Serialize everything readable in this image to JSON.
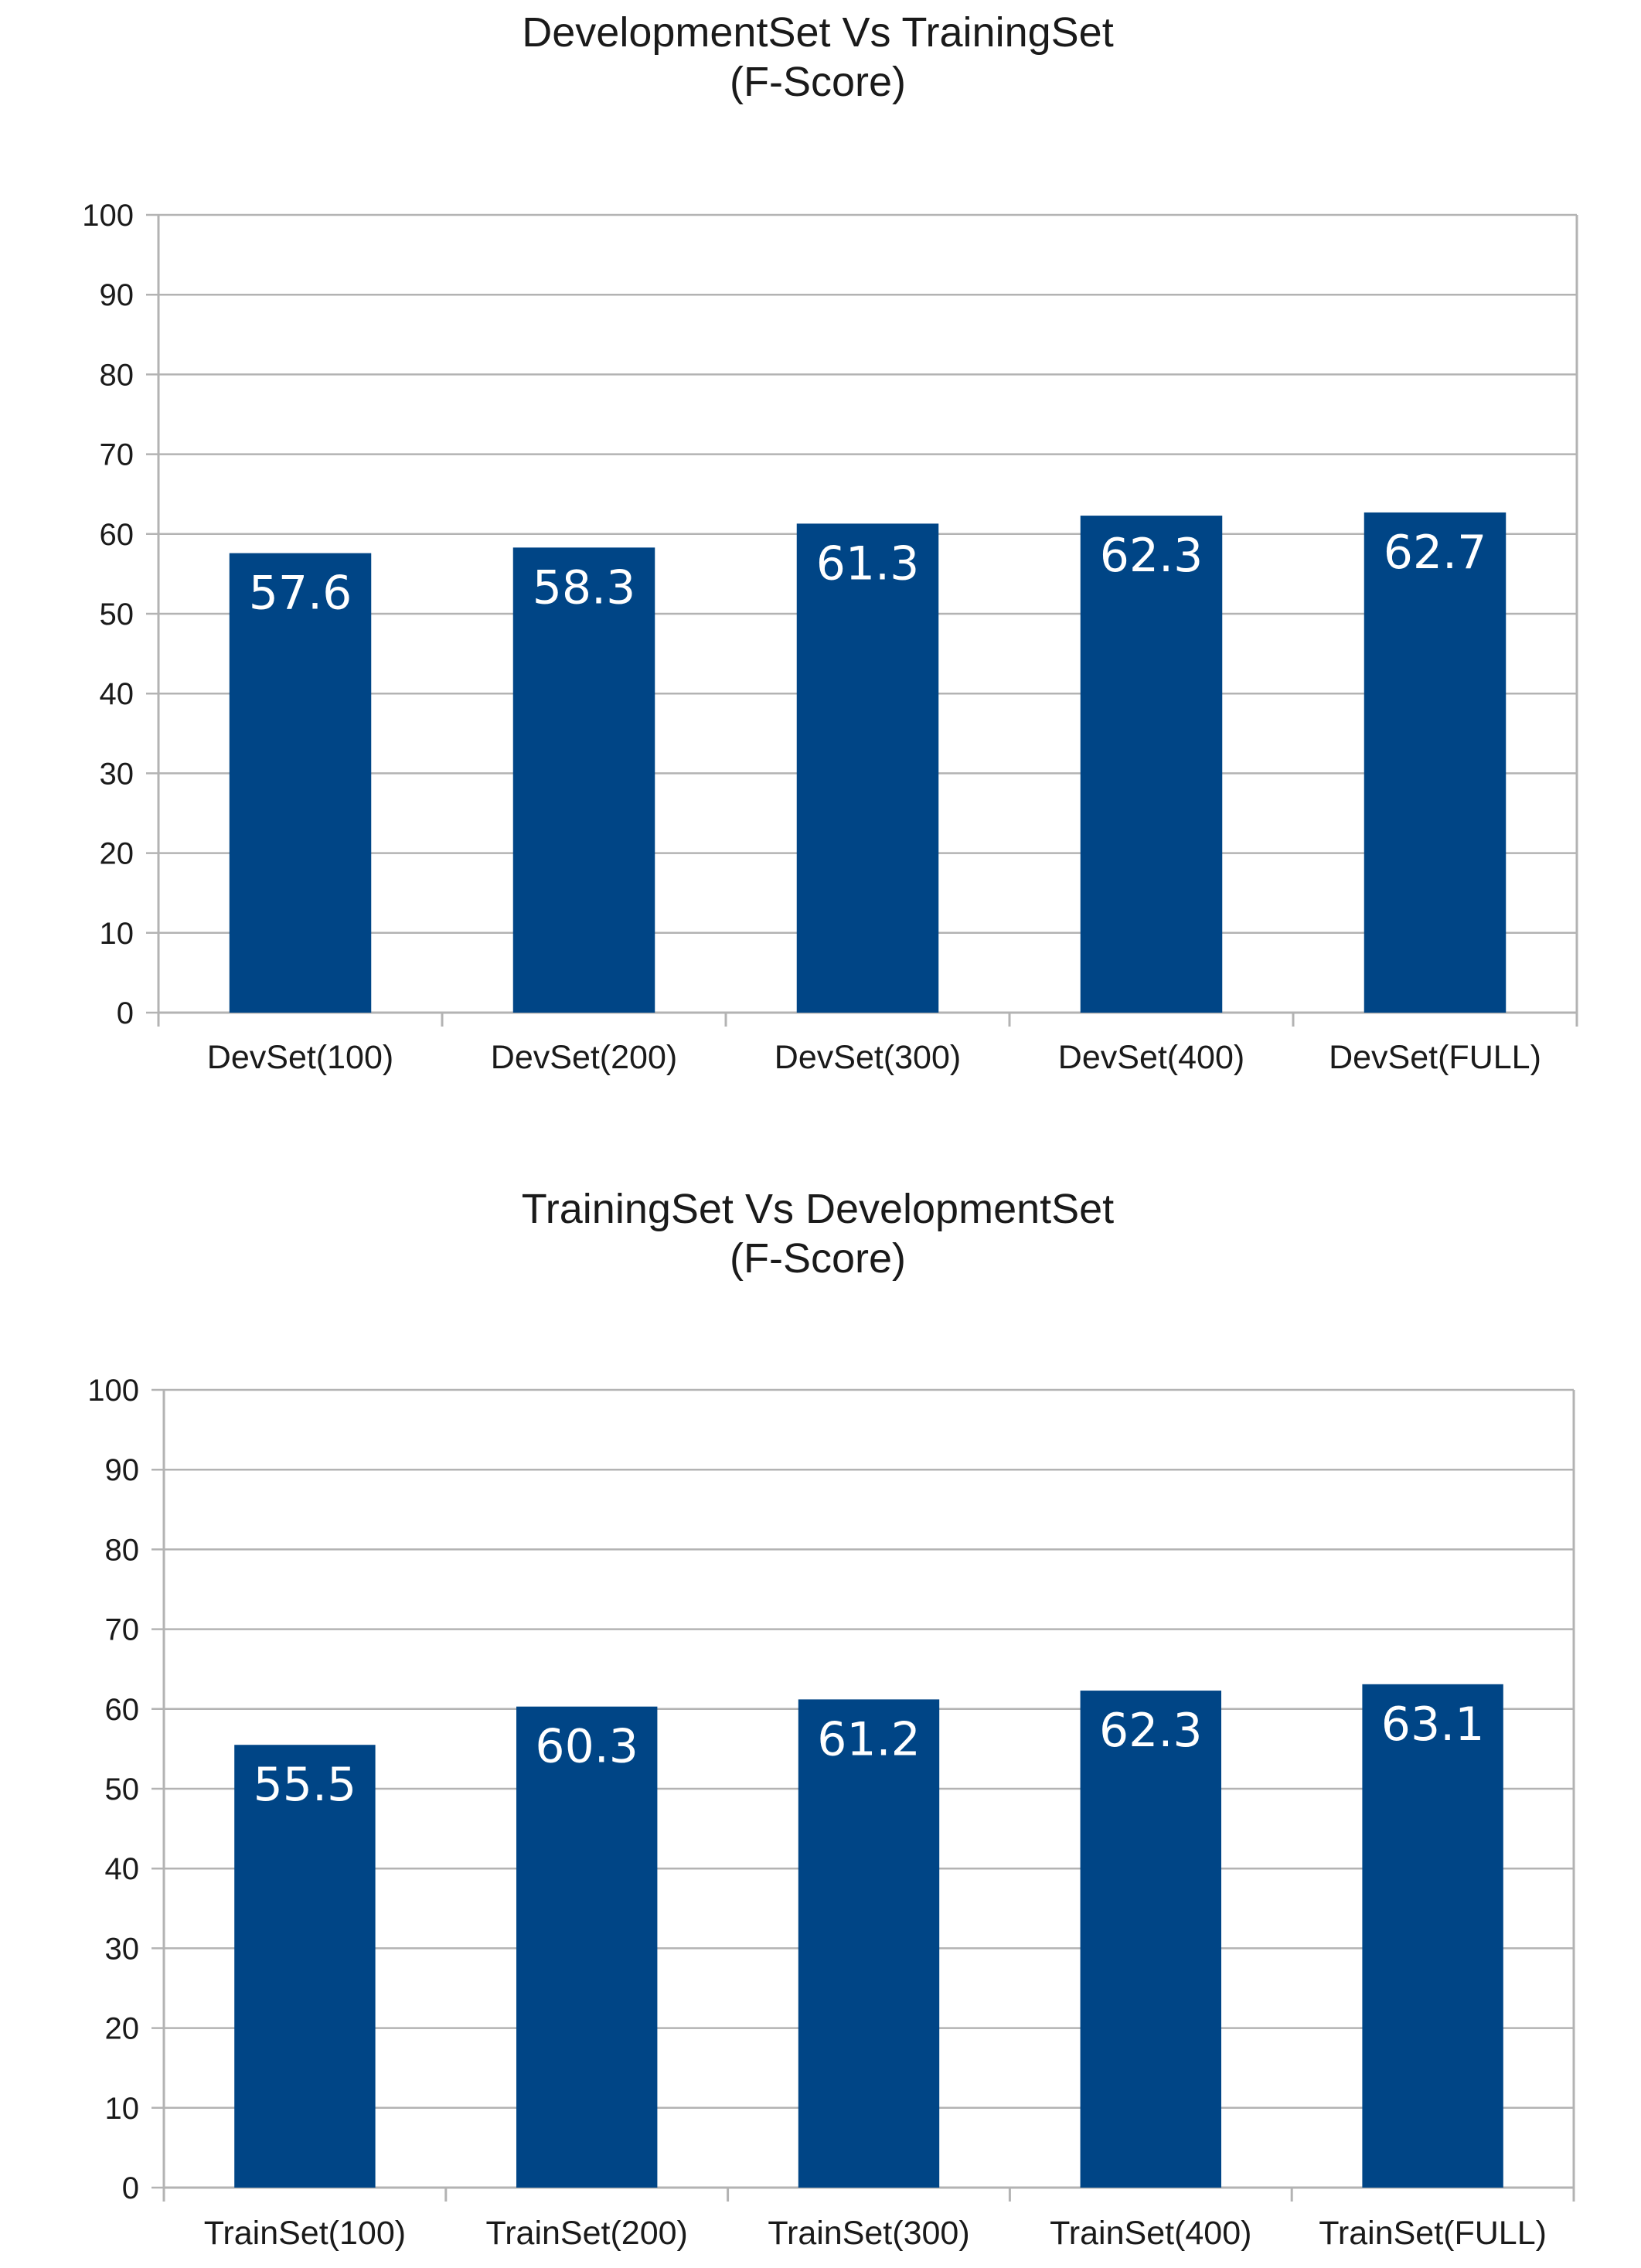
{
  "colors": {
    "bar": "#004586",
    "grid": "#b3b3b3",
    "text": "#1a1a1a",
    "data_label": "#ffffff",
    "background": "#ffffff"
  },
  "chart_data": [
    {
      "type": "bar",
      "title": [
        "DevelopmentSet Vs TrainingSet",
        "(F-Score)"
      ],
      "categories": [
        "DevSet(100)",
        "DevSet(200)",
        "DevSet(300)",
        "DevSet(400)",
        "DevSet(FULL)"
      ],
      "values": [
        57.6,
        58.3,
        61.3,
        62.3,
        62.7
      ],
      "data_labels": [
        "57.6",
        "58.3",
        "61.3",
        "62.3",
        "62.7"
      ],
      "ylim": [
        0,
        100
      ],
      "yticks": [
        0,
        10,
        20,
        30,
        40,
        50,
        60,
        70,
        80,
        90,
        100
      ],
      "grid": true,
      "legend": "none"
    },
    {
      "type": "bar",
      "title": [
        "TrainingSet Vs DevelopmentSet",
        "(F-Score)"
      ],
      "categories": [
        "TrainSet(100)",
        "TrainSet(200)",
        "TrainSet(300)",
        "TrainSet(400)",
        "TrainSet(FULL)"
      ],
      "values": [
        55.5,
        60.3,
        61.2,
        62.3,
        63.1
      ],
      "data_labels": [
        "55.5",
        "60.3",
        "61.2",
        "62.3",
        "63.1"
      ],
      "ylim": [
        0,
        100
      ],
      "yticks": [
        0,
        10,
        20,
        30,
        40,
        50,
        60,
        70,
        80,
        90,
        100
      ],
      "grid": true,
      "legend": "none"
    }
  ]
}
